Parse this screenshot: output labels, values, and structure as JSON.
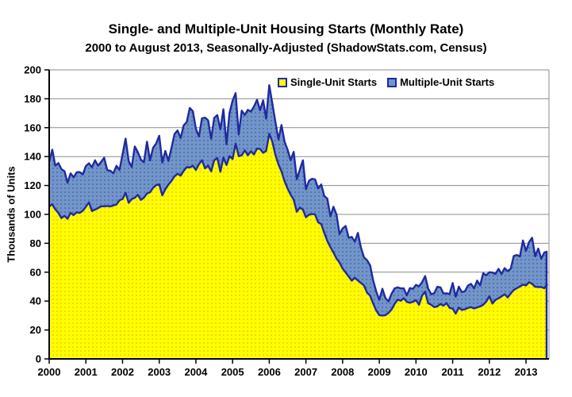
{
  "title": "Single- and Multiple-Unit Housing Starts (Monthly Rate)",
  "subtitle": "2000 to August 2013, Seasonally-Adjusted (ShadowStats.com, Census)",
  "y_axis": {
    "label": "Thousands of Units",
    "ticks": [
      0,
      20,
      40,
      60,
      80,
      100,
      120,
      140,
      160,
      180,
      200
    ]
  },
  "x_axis": {
    "ticks": [
      "2000",
      "2001",
      "2002",
      "2003",
      "2004",
      "2005",
      "2006",
      "2007",
      "2008",
      "2009",
      "2010",
      "2011",
      "2012",
      "2013"
    ]
  },
  "legend": [
    {
      "label": "Single-Unit Starts",
      "color": "#FFFF00"
    },
    {
      "label": "Multiple-Unit Starts",
      "color": "#7396C8"
    }
  ],
  "colors": {
    "single_fill": "#FFFF00",
    "single_dot": "#E8A000",
    "multiple_fill": "#7396C8",
    "multiple_dot": "#2C4A9E",
    "line": "#1F2AA0",
    "grid": "#8C8C8C",
    "axis": "#000000"
  },
  "chart_data": {
    "type": "area",
    "stacked": true,
    "title": "Single- and Multiple-Unit Housing Starts (Monthly Rate)",
    "subtitle": "2000 to August 2013, Seasonally-Adjusted (ShadowStats.com, Census)",
    "xlabel": "",
    "ylabel": "Thousands of Units",
    "ylim": [
      0,
      200
    ],
    "y_grid_step": 20,
    "grid": "horizontal",
    "legend_position": "top-inside",
    "x_start": "2000-01",
    "x_end": "2013-08",
    "x_frequency": "monthly",
    "x_tick_labels": [
      "2000",
      "2001",
      "2002",
      "2003",
      "2004",
      "2005",
      "2006",
      "2007",
      "2008",
      "2009",
      "2010",
      "2011",
      "2012",
      "2013"
    ],
    "series": [
      {
        "name": "Single-Unit Starts",
        "values": [
          105.5,
          107.0,
          103.5,
          101.0,
          97.5,
          99.0,
          97.0,
          101.0,
          99.5,
          101.5,
          101.0,
          102.5,
          105.2,
          108.3,
          102.3,
          103.3,
          104.3,
          105.6,
          105.6,
          105.8,
          105.5,
          106.2,
          106.8,
          109.7,
          110.6,
          114.9,
          108.1,
          110.6,
          111.5,
          113.5,
          110.0,
          111.6,
          114.5,
          115.3,
          118.4,
          120.2,
          120.8,
          113.2,
          117.4,
          120.6,
          123.1,
          126.3,
          128.1,
          126.8,
          130.1,
          132.7,
          132.4,
          133.6,
          130.7,
          134.8,
          137.5,
          131.8,
          133.8,
          129.8,
          137.5,
          139.0,
          129.5,
          139.3,
          134.2,
          140.3,
          138.3,
          149.0,
          140.3,
          140.9,
          144.3,
          140.9,
          143.7,
          141.5,
          145.5,
          145.3,
          142.6,
          143.9,
          155.8,
          150.3,
          141.2,
          134.6,
          129.7,
          122.9,
          117.9,
          113.5,
          110.2,
          101.8,
          104.7,
          103.3,
          98.0,
          99.8,
          100.3,
          99.9,
          94.5,
          93.3,
          87.3,
          81.6,
          77.3,
          73.7,
          69.4,
          66.7,
          62.5,
          59.8,
          56.9,
          54.1,
          56.2,
          54.3,
          52.5,
          50.8,
          45.8,
          43.8,
          38.3,
          33.5,
          30.3,
          30.0,
          30.3,
          31.8,
          34.1,
          38.0,
          41.0,
          40.2,
          42.0,
          39.5,
          38.8,
          39.5,
          40.6,
          37.5,
          43.8,
          46.5,
          38.5,
          37.4,
          35.8,
          36.4,
          38.0,
          36.8,
          38.6,
          35.3,
          34.8,
          31.3,
          35.5,
          33.9,
          34.3,
          35.3,
          35.8,
          34.9,
          35.6,
          36.3,
          37.5,
          39.6,
          43.4,
          38.3,
          40.8,
          41.9,
          43.3,
          44.7,
          42.5,
          45.3,
          47.7,
          48.9,
          50.1,
          51.3,
          50.8,
          53.1,
          51.9,
          49.9,
          49.7,
          49.7,
          48.9,
          51.9
        ]
      },
      {
        "name": "Multiple-Unit Starts",
        "values": [
          30.8,
          37.8,
          30.2,
          34.5,
          33.8,
          30.9,
          24.9,
          27.4,
          26.1,
          27.6,
          28.3,
          25.2,
          28.2,
          27.1,
          30.3,
          34.1,
          29.4,
          30.7,
          33.6,
          24.8,
          24.7,
          22.2,
          26.8,
          21.0,
          30.9,
          37.5,
          28.8,
          22.1,
          35.5,
          29.6,
          27.9,
          24.5,
          35.8,
          22.1,
          27.7,
          28.8,
          33.6,
          22.6,
          26.5,
          16.3,
          22.8,
          29.3,
          30.0,
          26.0,
          31.5,
          31.2,
          41.2,
          37.8,
          28.6,
          19.1,
          29.0,
          35.1,
          31.3,
          22.5,
          29.3,
          29.7,
          29.3,
          33.4,
          14.3,
          29.9,
          40.4,
          34.9,
          15.0,
          30.9,
          24.5,
          31.4,
          27.5,
          33.1,
          33.8,
          26.8,
          36.3,
          22.3,
          33.6,
          26.3,
          22.9,
          17.2,
          32.1,
          27.3,
          26.9,
          24.0,
          33.1,
          22.5,
          26.1,
          34.1,
          19.4,
          23.5,
          24.3,
          24.3,
          23.4,
          27.4,
          25.5,
          29.2,
          21.3,
          31.6,
          30.4,
          19.7,
          27.8,
          32.1,
          26.9,
          30.3,
          24.9,
          32.9,
          24.4,
          19.5,
          22.5,
          21.0,
          16.0,
          13.2,
          10.5,
          18.5,
          11.8,
          8.0,
          10.9,
          10.8,
          8.5,
          8.6,
          6.8,
          4.4,
          10.2,
          8.9,
          10.6,
          12.8,
          9.2,
          10.8,
          10.1,
          7.3,
          9.7,
          13.5,
          11.5,
          8.5,
          6.8,
          9.6,
          17.7,
          11.8,
          14.5,
          12.3,
          12.5,
          15.4,
          16.1,
          13.9,
          18.6,
          14.5,
          21.8,
          18.2,
          16.6,
          21.5,
          18.0,
          20.4,
          15.5,
          18.1,
          18.2,
          17.1,
          23.5,
          23.0,
          20.8,
          30.6,
          24.0,
          27.7,
          31.9,
          21.1,
          26.6,
          19.6,
          24.7,
          22.4
        ]
      }
    ]
  }
}
